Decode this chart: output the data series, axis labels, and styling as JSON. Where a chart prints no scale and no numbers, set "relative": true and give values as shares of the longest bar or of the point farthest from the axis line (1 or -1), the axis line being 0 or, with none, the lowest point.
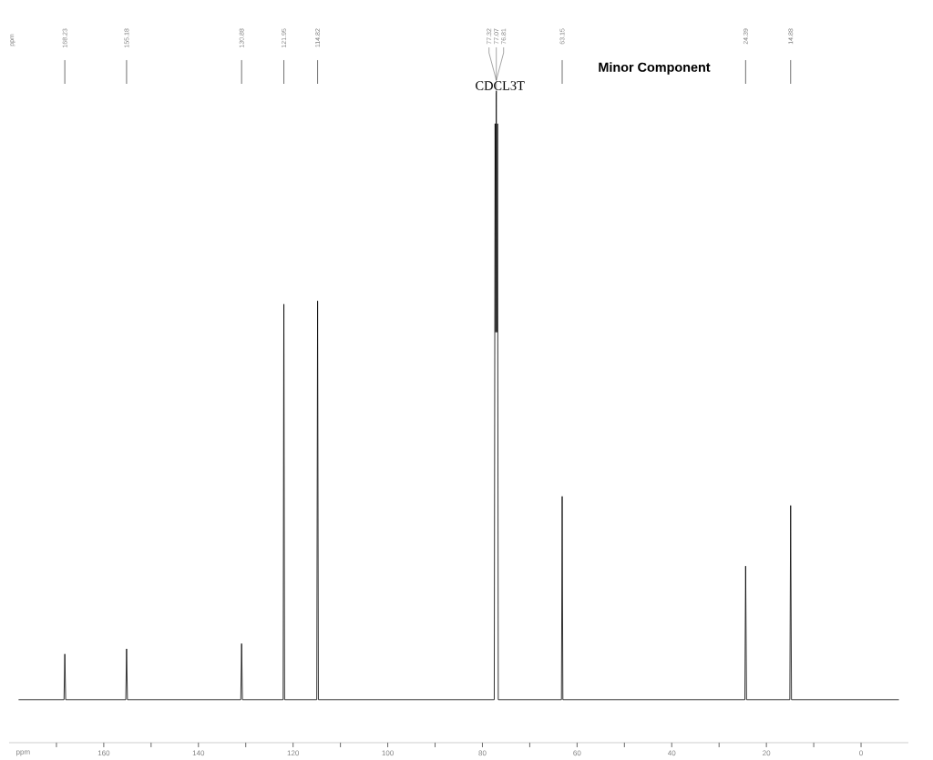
{
  "chart_data": {
    "type": "line",
    "relative": true,
    "xlabel": "ppm",
    "xlim": [
      180,
      -10
    ],
    "xticks": [
      {
        "value": 170,
        "label": null
      },
      160,
      {
        "value": 150,
        "label": null
      },
      140,
      {
        "value": 130,
        "label": null
      },
      120,
      {
        "value": 110,
        "label": null
      },
      100,
      {
        "value": 90,
        "label": null
      },
      80,
      {
        "value": 70,
        "label": null
      },
      60,
      {
        "value": 50,
        "label": null
      },
      40,
      {
        "value": 30,
        "label": null
      },
      20,
      {
        "value": 10,
        "label": null
      },
      0
    ],
    "series": [
      {
        "color": "#000000",
        "x": [
          178,
          168.4,
          168.23,
          168.05,
          155.35,
          155.18,
          155.0,
          131.05,
          130.88,
          130.7,
          122.1,
          121.95,
          121.8,
          115.0,
          114.82,
          114.65,
          77.5,
          77.32,
          77.2,
          77.07,
          76.95,
          76.81,
          76.65,
          63.3,
          63.15,
          63.0,
          24.55,
          24.39,
          24.2,
          15.05,
          14.88,
          14.7,
          -8
        ],
        "values": [
          0.066,
          0.066,
          0.136,
          0.066,
          0.066,
          0.144,
          0.066,
          0.066,
          0.152,
          0.066,
          0.066,
          0.673,
          0.066,
          0.066,
          0.678,
          0.066,
          0.066,
          0.95,
          0.63,
          1,
          0.63,
          0.95,
          0.066,
          0.066,
          0.378,
          0.066,
          0.066,
          0.271,
          0.066,
          0.066,
          0.364,
          0.066,
          0.066
        ]
      }
    ],
    "annotations": [
      "168.23",
      "155.18",
      "130.88",
      "121.95",
      "114.82",
      "77.32",
      "77.07",
      "76.81",
      "63.15",
      "24.39",
      "14.88",
      "CDCL3T",
      "Minor Component",
      "ppm"
    ]
  }
}
